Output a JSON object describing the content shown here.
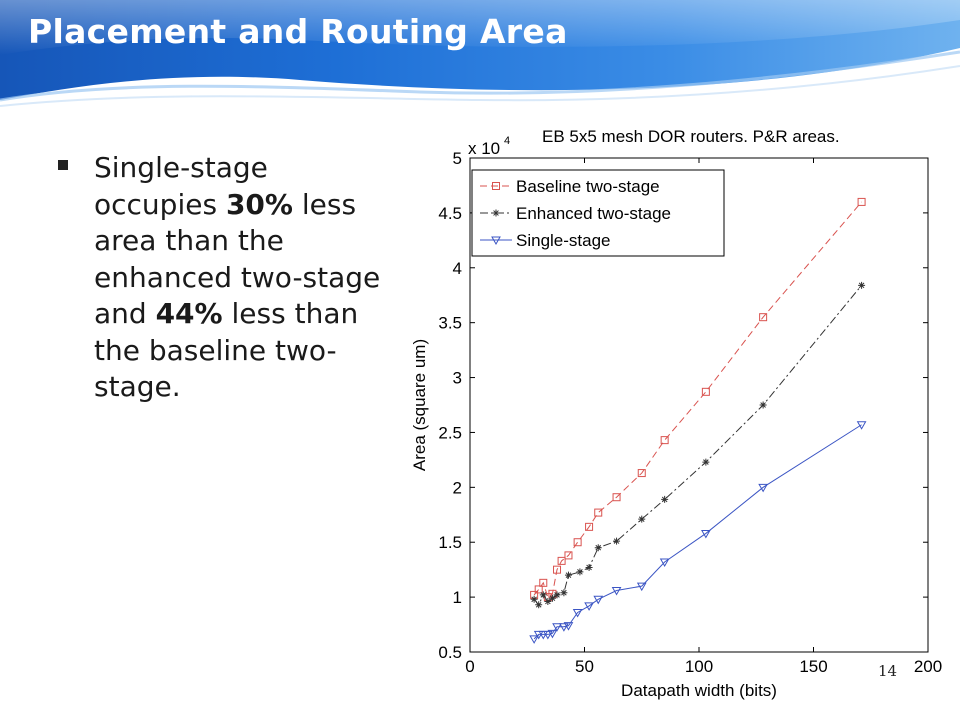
{
  "slide": {
    "title": "Placement and Routing Area",
    "page_number": "14",
    "bullet": {
      "parts": [
        {
          "text": "Single-stage occupies ",
          "bold": false
        },
        {
          "text": "30%",
          "bold": true
        },
        {
          "text": " less area than the enhanced two-stage and ",
          "bold": false
        },
        {
          "text": "44%",
          "bold": true
        },
        {
          "text": " less than the baseline two-stage.",
          "bold": false
        }
      ]
    }
  },
  "chart_data": {
    "type": "line",
    "title": "EB 5x5 mesh DOR routers. P&R areas.",
    "xlabel": "Datapath width (bits)",
    "ylabel": "Area (square um)",
    "y_multiplier_label": "x 10",
    "y_multiplier_exponent": "4",
    "xlim": [
      0,
      200
    ],
    "ylim": [
      0.5,
      5
    ],
    "xticks": [
      "0",
      "50",
      "100",
      "150",
      "200"
    ],
    "yticks": [
      "0.5",
      "1",
      "1.5",
      "2",
      "2.5",
      "3",
      "3.5",
      "4",
      "4.5",
      "5"
    ],
    "grid": false,
    "legend_position": "top-left",
    "series": [
      {
        "name": "Baseline two-stage",
        "color": "#d9534f",
        "line_style": "dashed",
        "marker": "square",
        "x": [
          28,
          30,
          32,
          34,
          36,
          38,
          40,
          43,
          47,
          52,
          56,
          64,
          75,
          85,
          103,
          128,
          171
        ],
        "y": [
          1.02,
          1.07,
          1.13,
          1.0,
          1.03,
          1.25,
          1.33,
          1.38,
          1.5,
          1.64,
          1.77,
          1.91,
          2.13,
          2.43,
          2.87,
          3.55,
          4.6
        ]
      },
      {
        "name": "Enhanced two-stage",
        "color": "#333333",
        "line_style": "dash-dot",
        "marker": "star",
        "x": [
          28,
          30,
          32,
          34,
          36,
          38,
          41,
          43,
          48,
          52,
          56,
          64,
          75,
          85,
          103,
          128,
          171
        ],
        "y": [
          0.98,
          0.93,
          1.02,
          0.96,
          0.99,
          1.02,
          1.04,
          1.2,
          1.23,
          1.27,
          1.45,
          1.51,
          1.71,
          1.89,
          2.23,
          2.75,
          3.84
        ]
      },
      {
        "name": "Single-stage",
        "color": "#3b55c4",
        "line_style": "solid",
        "marker": "triangle-down",
        "x": [
          28,
          30,
          32,
          34,
          36,
          38,
          41,
          43,
          47,
          52,
          56,
          64,
          75,
          85,
          103,
          128,
          171
        ],
        "y": [
          0.62,
          0.66,
          0.66,
          0.66,
          0.67,
          0.73,
          0.73,
          0.74,
          0.86,
          0.92,
          0.98,
          1.06,
          1.1,
          1.32,
          1.58,
          2.0,
          2.57
        ]
      }
    ]
  }
}
